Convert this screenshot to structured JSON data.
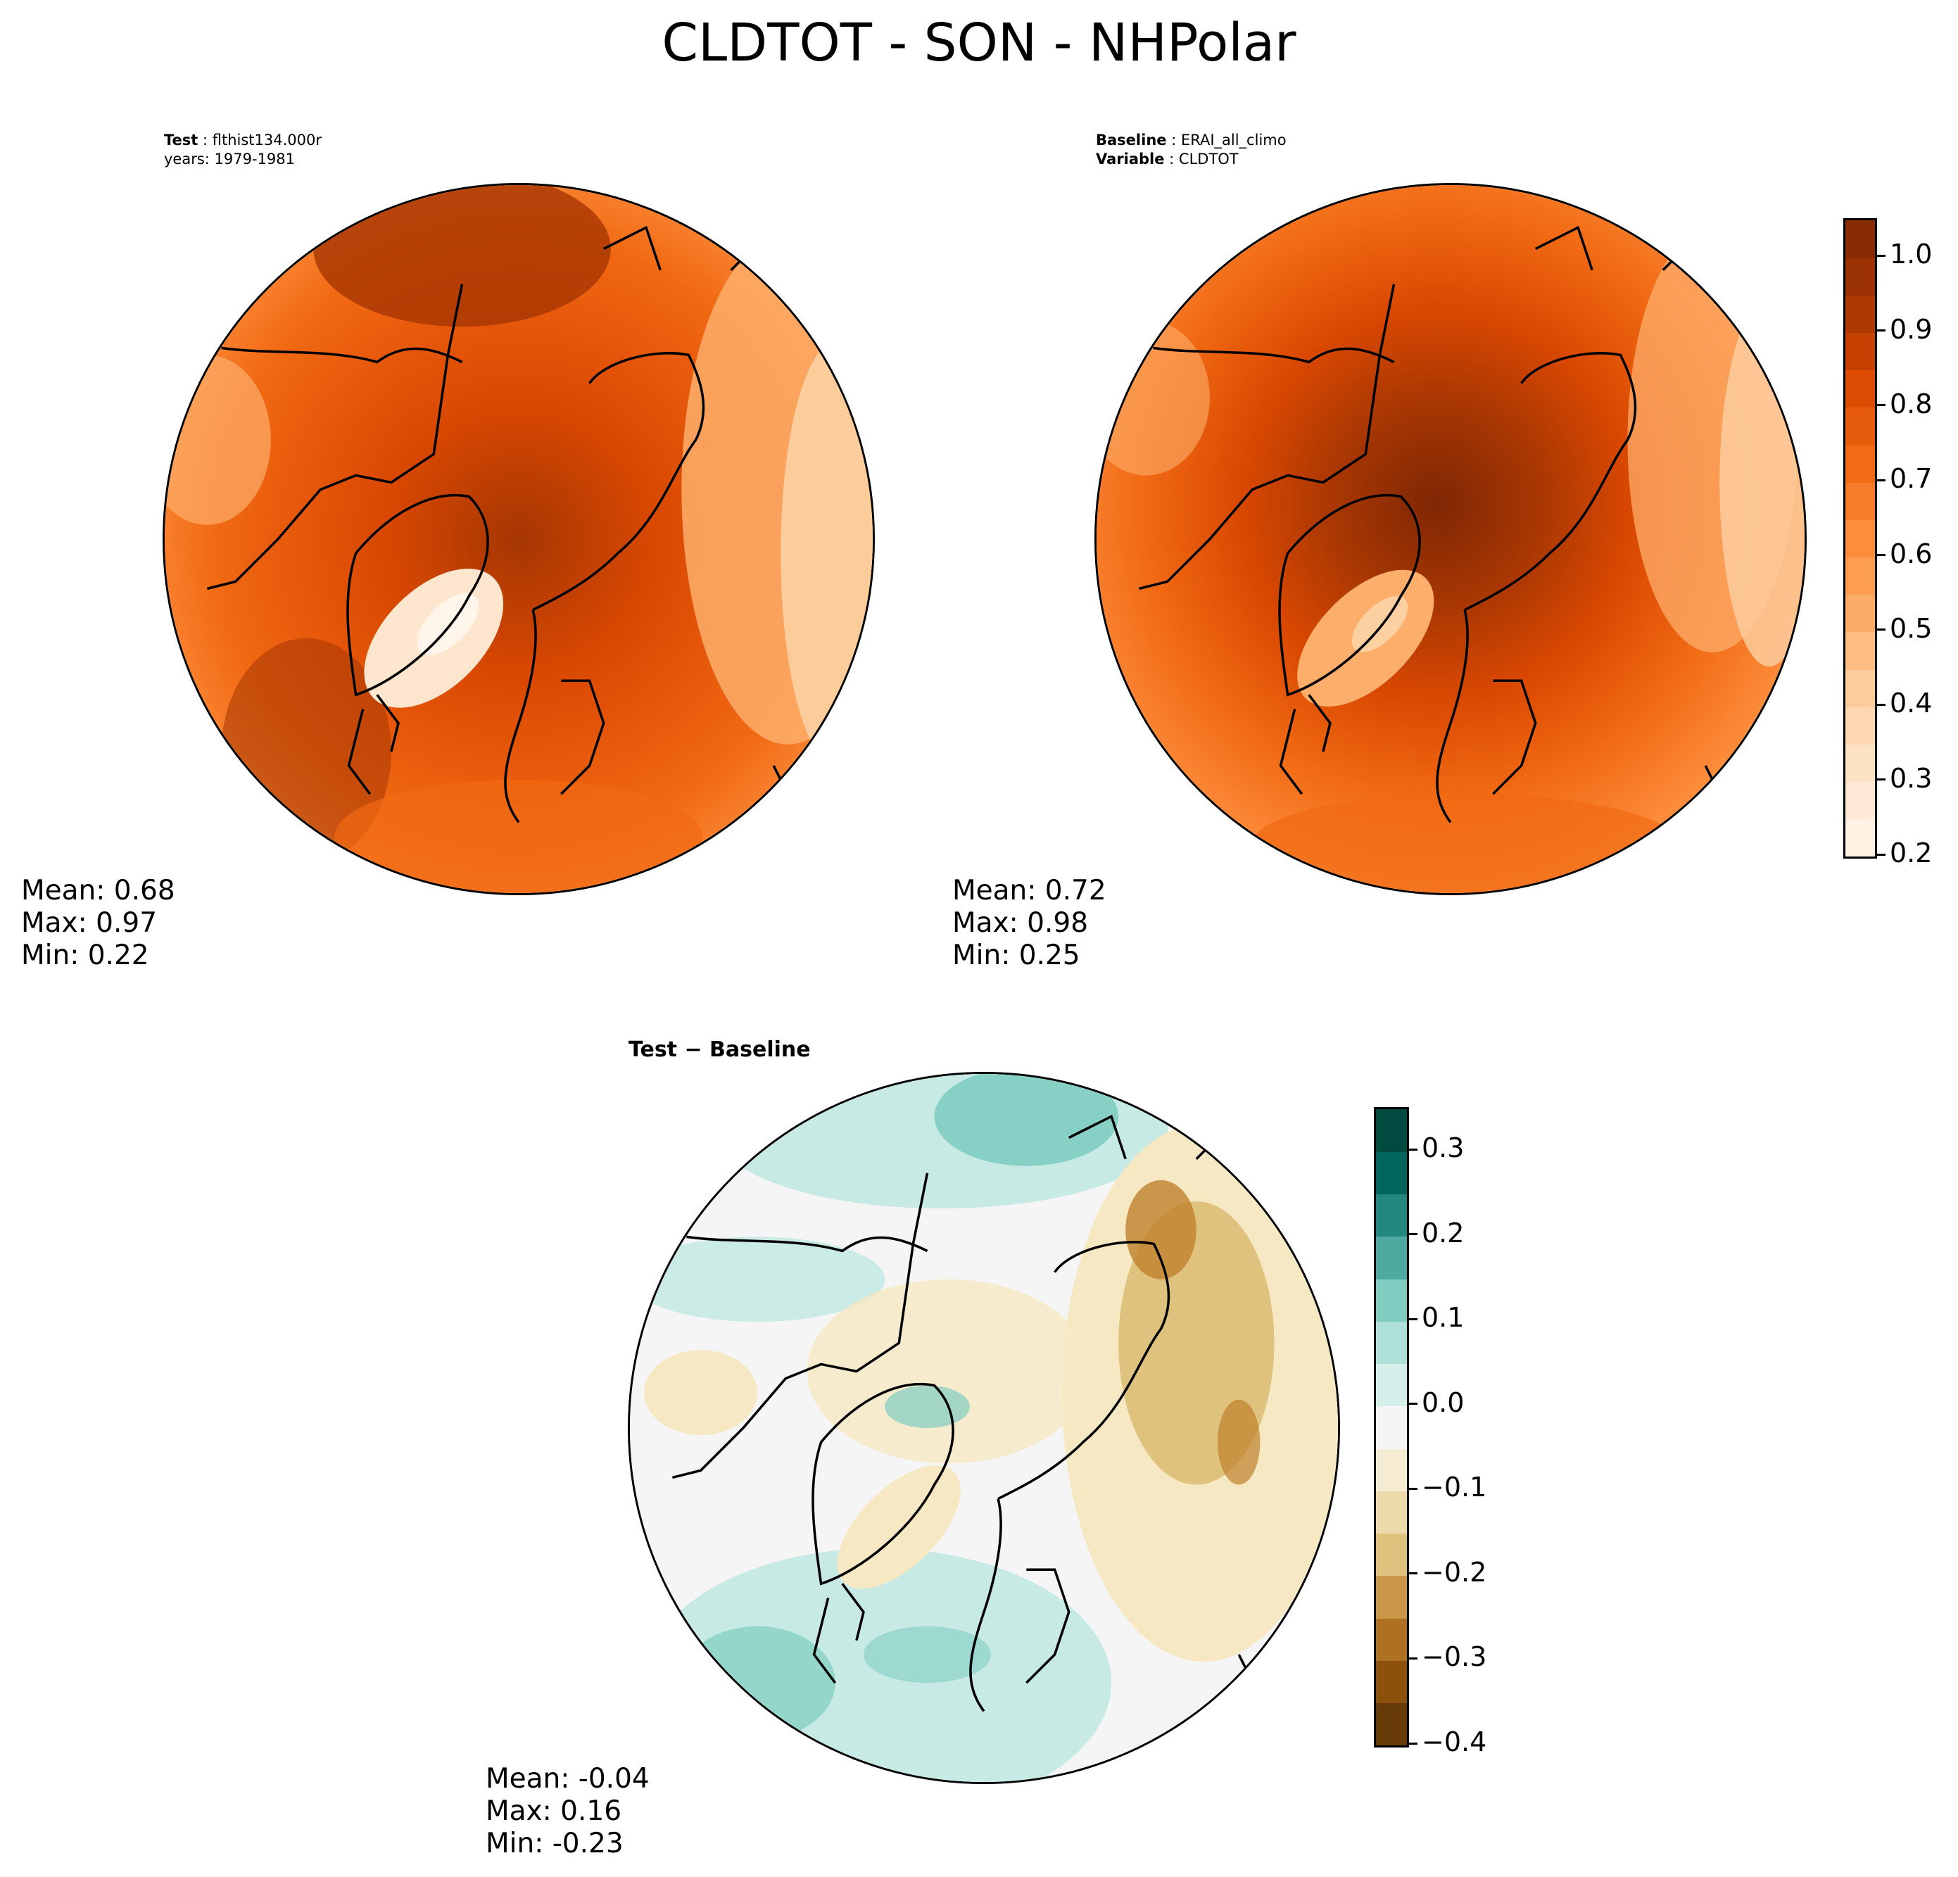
{
  "figure": {
    "title": "CLDTOT - SON - NHPolar"
  },
  "panels": {
    "test": {
      "label_bold": "Test",
      "label_value": "flthist134.000r",
      "years_line": "years: 1979-1981",
      "stats": {
        "mean": "Mean:  0.68",
        "max": "Max:  0.97",
        "min": "Min:  0.22"
      }
    },
    "baseline": {
      "label_bold": "Baseline",
      "label_value": "ERAI_all_climo",
      "variable_bold": "Variable",
      "variable_value": "CLDTOT",
      "stats": {
        "mean": "Mean:  0.72",
        "max": "Max:  0.98",
        "min": "Min:  0.25"
      }
    },
    "diff": {
      "title": "Test − Baseline",
      "stats": {
        "mean": "Mean: -0.04",
        "max": "Max:  0.16",
        "min": "Min: -0.23"
      }
    }
  },
  "colors": {
    "oranges": [
      "#fff5eb",
      "#fee6ce",
      "#fdd0a2",
      "#fdae6b",
      "#fd8d3c",
      "#f16913",
      "#d94801",
      "#a63603",
      "#7f2704"
    ],
    "brbg": [
      "#543005",
      "#8c510a",
      "#bf812d",
      "#dfc27d",
      "#f6e8c3",
      "#f5f5f5",
      "#c7eae5",
      "#80cdc1",
      "#35978f",
      "#01665e",
      "#003c30"
    ]
  },
  "chart_data": [
    {
      "type": "heatmap",
      "name": "Test",
      "projection": "north polar stereographic",
      "variable": "CLDTOT",
      "colorbar": {
        "range": [
          0.2,
          1.05
        ],
        "ticks": [
          "0.2",
          "0.3",
          "0.4",
          "0.5",
          "0.6",
          "0.7",
          "0.8",
          "0.9",
          "1.0"
        ]
      },
      "stats": {
        "mean": 0.68,
        "max": 0.97,
        "min": 0.22
      }
    },
    {
      "type": "heatmap",
      "name": "Baseline",
      "projection": "north polar stereographic",
      "variable": "CLDTOT",
      "colorbar": {
        "range": [
          0.2,
          1.05
        ],
        "ticks": [
          "0.2",
          "0.3",
          "0.4",
          "0.5",
          "0.6",
          "0.7",
          "0.8",
          "0.9",
          "1.0"
        ]
      },
      "stats": {
        "mean": 0.72,
        "max": 0.98,
        "min": 0.25
      }
    },
    {
      "type": "heatmap",
      "name": "Test − Baseline",
      "projection": "north polar stereographic",
      "variable": "CLDTOT",
      "colorbar": {
        "range": [
          -0.4,
          0.35
        ],
        "ticks": [
          "−0.4",
          "−0.3",
          "−0.2",
          "−0.1",
          "0.0",
          "0.1",
          "0.2",
          "0.3"
        ]
      },
      "stats": {
        "mean": -0.04,
        "max": 0.16,
        "min": -0.23
      }
    }
  ]
}
